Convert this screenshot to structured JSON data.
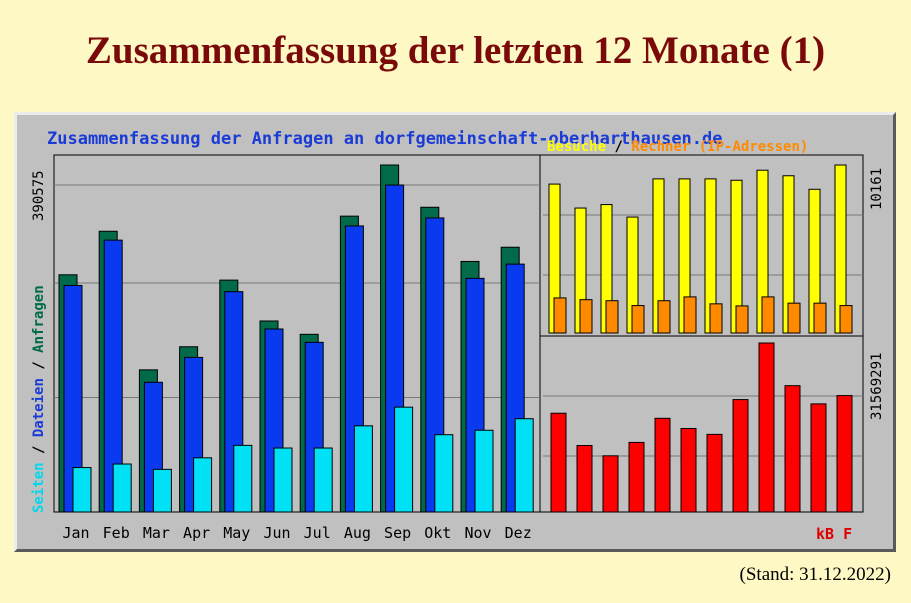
{
  "slide": {
    "title": "Zusammenfassung der letzten 12 Monate (1)",
    "stand": "(Stand: 31.12.2022)"
  },
  "chart_data": [
    {
      "type": "bar",
      "title": "Zusammenfassung der Anfragen an dorfgemeinschaft-oberharthausen.de",
      "ylabel_parts": [
        "Seiten",
        "Dateien",
        "Anfragen"
      ],
      "ymax_label": "390575",
      "categories": [
        "Jan",
        "Feb",
        "Mar",
        "Apr",
        "May",
        "Jun",
        "Jul",
        "Aug",
        "Sep",
        "Okt",
        "Nov",
        "Dez"
      ],
      "series": [
        {
          "name": "Anfragen",
          "color": "#006a4a",
          "values": [
            267000,
            316000,
            160000,
            186000,
            261000,
            215000,
            200000,
            333000,
            390575,
            343000,
            282000,
            298000
          ]
        },
        {
          "name": "Dateien",
          "color": "#0a3af0",
          "values": [
            255000,
            306000,
            146000,
            174000,
            248000,
            206000,
            191000,
            322000,
            368000,
            331000,
            263000,
            279000
          ]
        },
        {
          "name": "Seiten",
          "color": "#00e1f5",
          "values": [
            50000,
            54000,
            48000,
            61000,
            75000,
            72000,
            72000,
            97000,
            118000,
            87000,
            92000,
            105000
          ]
        }
      ]
    },
    {
      "type": "bar",
      "title_parts": [
        "Besuche",
        "Rechner (IP-Adressen)"
      ],
      "ymax_label": "10161",
      "categories": [
        "Jan",
        "Feb",
        "Mar",
        "Apr",
        "May",
        "Jun",
        "Jul",
        "Aug",
        "Sep",
        "Okt",
        "Nov",
        "Dez"
      ],
      "series": [
        {
          "name": "Besuche",
          "color": "#ffff00",
          "values": [
            8580,
            7200,
            7400,
            6680,
            8880,
            8880,
            8880,
            8800,
            9380,
            9060,
            8280,
            9680
          ]
        },
        {
          "name": "Rechner (IP-Adressen)",
          "color": "#ff8a00",
          "values": [
            2020,
            1920,
            1860,
            1580,
            1860,
            2080,
            1680,
            1560,
            2080,
            1720,
            1720,
            1580
          ]
        }
      ]
    },
    {
      "type": "bar",
      "ymax_label": "31569291",
      "legend": [
        "kB",
        "F"
      ],
      "categories": [
        "Jan",
        "Feb",
        "Mar",
        "Apr",
        "May",
        "Jun",
        "Jul",
        "Aug",
        "Sep",
        "Okt",
        "Nov",
        "Dez"
      ],
      "series": [
        {
          "name": "kB F",
          "color": "#ff0000",
          "values": [
            18450000,
            12420000,
            10500000,
            13000000,
            17500000,
            15600000,
            14500000,
            21000000,
            31569291,
            23600000,
            20200000,
            21750000
          ]
        }
      ]
    }
  ],
  "colors": {
    "panel_bg": "#c0c0c0",
    "title_blue": "#1b3bd6",
    "month_label": "#000000",
    "red_label": "#e00000"
  }
}
